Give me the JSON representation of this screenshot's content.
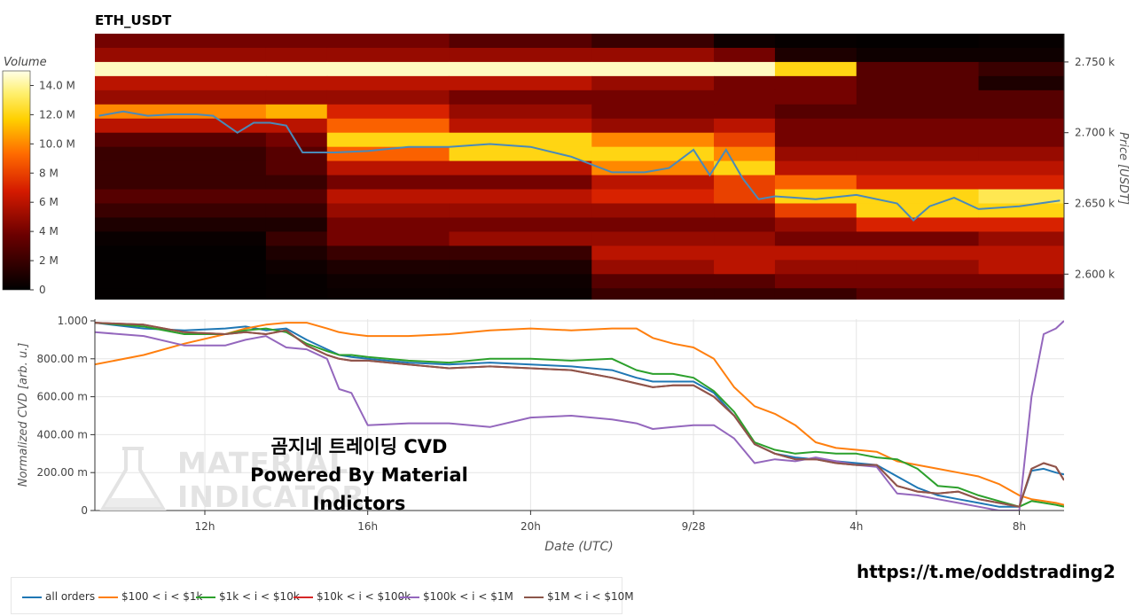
{
  "title": "ETH_USDT",
  "colorbar": {
    "label": "Volume",
    "ticks": [
      "0",
      "2 M",
      "4 M",
      "6 M",
      "8 M",
      "10.0 M",
      "12.0 M",
      "14.0 M"
    ],
    "tick_values": [
      0,
      2,
      4,
      6,
      8,
      10,
      12,
      14
    ],
    "max": 15.0
  },
  "price_axis": {
    "label": "Price [USDT]",
    "ticks": [
      "2.600 k",
      "2.650 k",
      "2.700 k",
      "2.750 k"
    ],
    "tick_values": [
      2600,
      2650,
      2700,
      2750
    ]
  },
  "cvd_axis": {
    "label": "Normalized CVD [arb. u.]",
    "ticks": [
      "0",
      "200.00 m",
      "400.00 m",
      "600.00 m",
      "800.00 m",
      "1.000"
    ],
    "tick_values": [
      0,
      0.2,
      0.4,
      0.6,
      0.8,
      1.0
    ]
  },
  "x_axis": {
    "label": "Date (UTC)",
    "ticks": [
      "12h",
      "16h",
      "20h",
      "9/28",
      "4h",
      "8h"
    ],
    "tick_values": [
      12,
      16,
      20,
      24,
      28,
      32
    ]
  },
  "overlay": {
    "line1": "곰지네 트레이딩 CVD",
    "line2": "Powered By Material Indictors"
  },
  "watermark": {
    "line1": "MATERIAL",
    "line2": "INDICATORS"
  },
  "footer_url": "https://t.me/oddstrading2",
  "legend": [
    {
      "name": "all orders",
      "color": "#1f77b4"
    },
    {
      "name": "$100 < i < $1k",
      "color": "#ff7f0e"
    },
    {
      "name": "$1k < i < $10k",
      "color": "#2ca02c"
    },
    {
      "name": "$10k < i < $100k",
      "color": "#d62728"
    },
    {
      "name": "$100k < i < $1M",
      "color": "#9467bd"
    },
    {
      "name": "$1M < i < $10M",
      "color": "#8c564b"
    }
  ],
  "chart_data": [
    {
      "type": "heatmap",
      "title": "ETH_USDT",
      "x_range": [
        9.3,
        33.1
      ],
      "y_range": [
        2582,
        2770
      ],
      "zlim": [
        0,
        15
      ],
      "price_line": {
        "name": "price",
        "color": "#4a8ab8",
        "x": [
          9.4,
          10.0,
          10.6,
          11.2,
          11.8,
          12.2,
          12.8,
          13.2,
          13.6,
          14.0,
          14.4,
          14.8,
          15.2,
          16.0,
          17.0,
          18.0,
          19.0,
          20.0,
          21.0,
          22.0,
          22.8,
          23.4,
          24.0,
          24.4,
          24.8,
          25.2,
          25.6,
          26.0,
          27.0,
          28.0,
          29.0,
          29.4,
          29.8,
          30.4,
          31.0,
          32.0,
          33.0
        ],
        "y": [
          2712,
          2715,
          2712,
          2713,
          2713,
          2712,
          2700,
          2707,
          2707,
          2705,
          2686,
          2686,
          2686,
          2687,
          2690,
          2690,
          2692,
          2690,
          2683,
          2672,
          2672,
          2675,
          2688,
          2670,
          2688,
          2668,
          2653,
          2655,
          2653,
          2656,
          2650,
          2638,
          2648,
          2654,
          2646,
          2648,
          2652
        ]
      },
      "volume_profile": {
        "levels": [
          2765,
          2755,
          2745,
          2735,
          2725,
          2715,
          2705,
          2695,
          2685,
          2675,
          2665,
          2655,
          2645,
          2635,
          2625,
          2615,
          2605,
          2595,
          2585
        ],
        "segments_hours": [
          9.3,
          13.5,
          15.0,
          18.0,
          21.5,
          24.5,
          26.0,
          28.0,
          31.0,
          33.1
        ],
        "values": [
          [
            4,
            4,
            4,
            3,
            2,
            0.5,
            0.2,
            0.1,
            0.2
          ],
          [
            5,
            5,
            5,
            5,
            5,
            4,
            1,
            0.5,
            0.5
          ],
          [
            14.5,
            14.5,
            14.5,
            14.5,
            14.5,
            14.5,
            12,
            3,
            2
          ],
          [
            6,
            6,
            6,
            6,
            5,
            4,
            4,
            3,
            1
          ],
          [
            5,
            5,
            5,
            4,
            4,
            4,
            4,
            3,
            3
          ],
          [
            10,
            11,
            7,
            5,
            4,
            4,
            3,
            3,
            3
          ],
          [
            6,
            6,
            9,
            6,
            5,
            6,
            4,
            4,
            4
          ],
          [
            3,
            4,
            12,
            12,
            10,
            8,
            4,
            4,
            4
          ],
          [
            2,
            3,
            9,
            12,
            12,
            10,
            5,
            5,
            5
          ],
          [
            2,
            3,
            6,
            6,
            10,
            12,
            6,
            6,
            6
          ],
          [
            2,
            2,
            4,
            4,
            6,
            8,
            9,
            7,
            7
          ],
          [
            3,
            3,
            6,
            6,
            7,
            8,
            12,
            12,
            13
          ],
          [
            2,
            2,
            5,
            5,
            5,
            5,
            8,
            12,
            12
          ],
          [
            1,
            1,
            4,
            4,
            4,
            4,
            5,
            7,
            7
          ],
          [
            0.3,
            2,
            4,
            5,
            5,
            5,
            4,
            4,
            5
          ],
          [
            0.1,
            1,
            2,
            2,
            6,
            6,
            6,
            6,
            6
          ],
          [
            0.1,
            0.5,
            1,
            1,
            5,
            6,
            5,
            5,
            6
          ],
          [
            0.1,
            0.2,
            0.5,
            0.5,
            3,
            3,
            4,
            4,
            4
          ],
          [
            0.1,
            0.2,
            0.3,
            0.3,
            2,
            2,
            2,
            3,
            3
          ]
        ]
      }
    },
    {
      "type": "line",
      "title": "",
      "xlabel": "Date (UTC)",
      "ylabel": "Normalized CVD [arb. u.]",
      "xlim": [
        9.3,
        33.1
      ],
      "ylim": [
        0,
        1.0
      ],
      "x": [
        9.3,
        10.5,
        11.5,
        12.5,
        13.0,
        13.5,
        14.0,
        14.5,
        15.0,
        15.3,
        15.6,
        16.0,
        17.0,
        18.0,
        19.0,
        20.0,
        21.0,
        22.0,
        22.6,
        23.0,
        23.5,
        24.0,
        24.5,
        25.0,
        25.5,
        26.0,
        26.5,
        27.0,
        27.5,
        28.0,
        28.5,
        29.0,
        29.5,
        30.0,
        30.5,
        31.0,
        31.5,
        32.0,
        32.3,
        32.6,
        32.9,
        33.1
      ],
      "series": [
        {
          "name": "all orders",
          "color": "#1f77b4",
          "values": [
            0.99,
            0.96,
            0.95,
            0.96,
            0.97,
            0.95,
            0.96,
            0.9,
            0.85,
            0.82,
            0.81,
            0.8,
            0.78,
            0.77,
            0.78,
            0.77,
            0.76,
            0.74,
            0.7,
            0.68,
            0.68,
            0.68,
            0.62,
            0.5,
            0.35,
            0.3,
            0.28,
            0.27,
            0.26,
            0.25,
            0.24,
            0.18,
            0.12,
            0.08,
            0.06,
            0.04,
            0.02,
            0.02,
            0.21,
            0.22,
            0.2,
            0.19
          ]
        },
        {
          "name": "$100 < i < $1k",
          "color": "#ff7f0e",
          "values": [
            0.77,
            0.82,
            0.88,
            0.93,
            0.96,
            0.98,
            0.99,
            0.99,
            0.96,
            0.94,
            0.93,
            0.92,
            0.92,
            0.93,
            0.95,
            0.96,
            0.95,
            0.96,
            0.96,
            0.91,
            0.88,
            0.86,
            0.8,
            0.65,
            0.55,
            0.51,
            0.45,
            0.36,
            0.33,
            0.32,
            0.31,
            0.26,
            0.24,
            0.22,
            0.2,
            0.18,
            0.14,
            0.08,
            0.06,
            0.05,
            0.04,
            0.03
          ]
        },
        {
          "name": "$1k < i < $10k",
          "color": "#2ca02c",
          "values": [
            0.99,
            0.97,
            0.93,
            0.93,
            0.95,
            0.96,
            0.94,
            0.88,
            0.84,
            0.82,
            0.82,
            0.81,
            0.79,
            0.78,
            0.8,
            0.8,
            0.79,
            0.8,
            0.74,
            0.72,
            0.72,
            0.7,
            0.63,
            0.52,
            0.36,
            0.32,
            0.3,
            0.31,
            0.3,
            0.3,
            0.28,
            0.27,
            0.22,
            0.13,
            0.12,
            0.08,
            0.05,
            0.02,
            0.05,
            0.04,
            0.03,
            0.02
          ]
        },
        {
          "name": "$10k < i < $100k",
          "color": "#d62728",
          "values": [
            0.99,
            0.98,
            0.94,
            0.93,
            0.94,
            0.93,
            0.95,
            0.87,
            0.82,
            0.8,
            0.79,
            0.79,
            0.77,
            0.75,
            0.76,
            0.75,
            0.74,
            0.7,
            0.67,
            0.65,
            0.66,
            0.66,
            0.6,
            0.5,
            0.35,
            0.3,
            0.27,
            0.27,
            0.25,
            0.24,
            0.24,
            0.13,
            0.1,
            0.09,
            0.1,
            0.06,
            0.04,
            0.02,
            0.22,
            0.25,
            0.23,
            0.16
          ]
        },
        {
          "name": "$100k < i < $1M",
          "color": "#9467bd",
          "values": [
            0.94,
            0.92,
            0.87,
            0.87,
            0.9,
            0.92,
            0.86,
            0.85,
            0.8,
            0.64,
            0.62,
            0.45,
            0.46,
            0.46,
            0.44,
            0.49,
            0.5,
            0.48,
            0.46,
            0.43,
            0.44,
            0.45,
            0.45,
            0.38,
            0.25,
            0.27,
            0.26,
            0.28,
            0.26,
            0.24,
            0.23,
            0.09,
            0.08,
            0.06,
            0.04,
            0.02,
            0.0,
            0.0,
            0.6,
            0.93,
            0.96,
            1.0
          ]
        },
        {
          "name": "$1M < i < $10M",
          "color": "#8c564b",
          "values": [
            0.99,
            0.98,
            0.94,
            0.93,
            0.94,
            0.93,
            0.95,
            0.87,
            0.82,
            0.8,
            0.79,
            0.79,
            0.77,
            0.75,
            0.76,
            0.75,
            0.74,
            0.7,
            0.67,
            0.65,
            0.66,
            0.66,
            0.6,
            0.5,
            0.35,
            0.3,
            0.27,
            0.27,
            0.25,
            0.24,
            0.24,
            0.13,
            0.1,
            0.09,
            0.1,
            0.06,
            0.04,
            0.02,
            0.22,
            0.25,
            0.23,
            0.16
          ]
        }
      ]
    }
  ]
}
